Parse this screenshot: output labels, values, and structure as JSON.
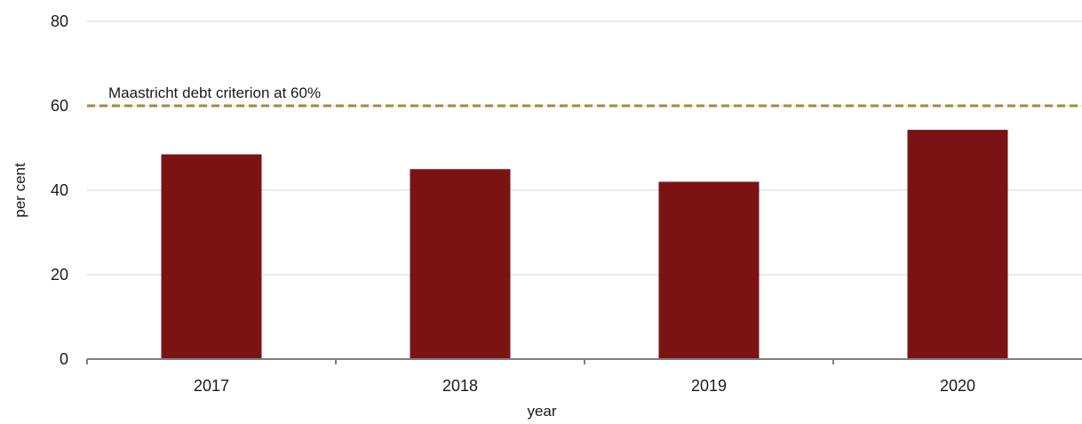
{
  "chart_data": {
    "type": "bar",
    "title": "",
    "xlabel": "year",
    "ylabel": "per cent",
    "categories": [
      "2017",
      "2018",
      "2019",
      "2020"
    ],
    "values": [
      48.5,
      45.0,
      42.0,
      54.3
    ],
    "ylim": [
      0,
      80
    ],
    "yticks": [
      0,
      20,
      40,
      60,
      80
    ],
    "grid": true,
    "legend": "none",
    "bar_color": "#7b1315",
    "reference_line": {
      "value": 60,
      "label": "Maastricht debt criterion at 60%",
      "color": "#a48a3c",
      "style": "dashed"
    }
  }
}
